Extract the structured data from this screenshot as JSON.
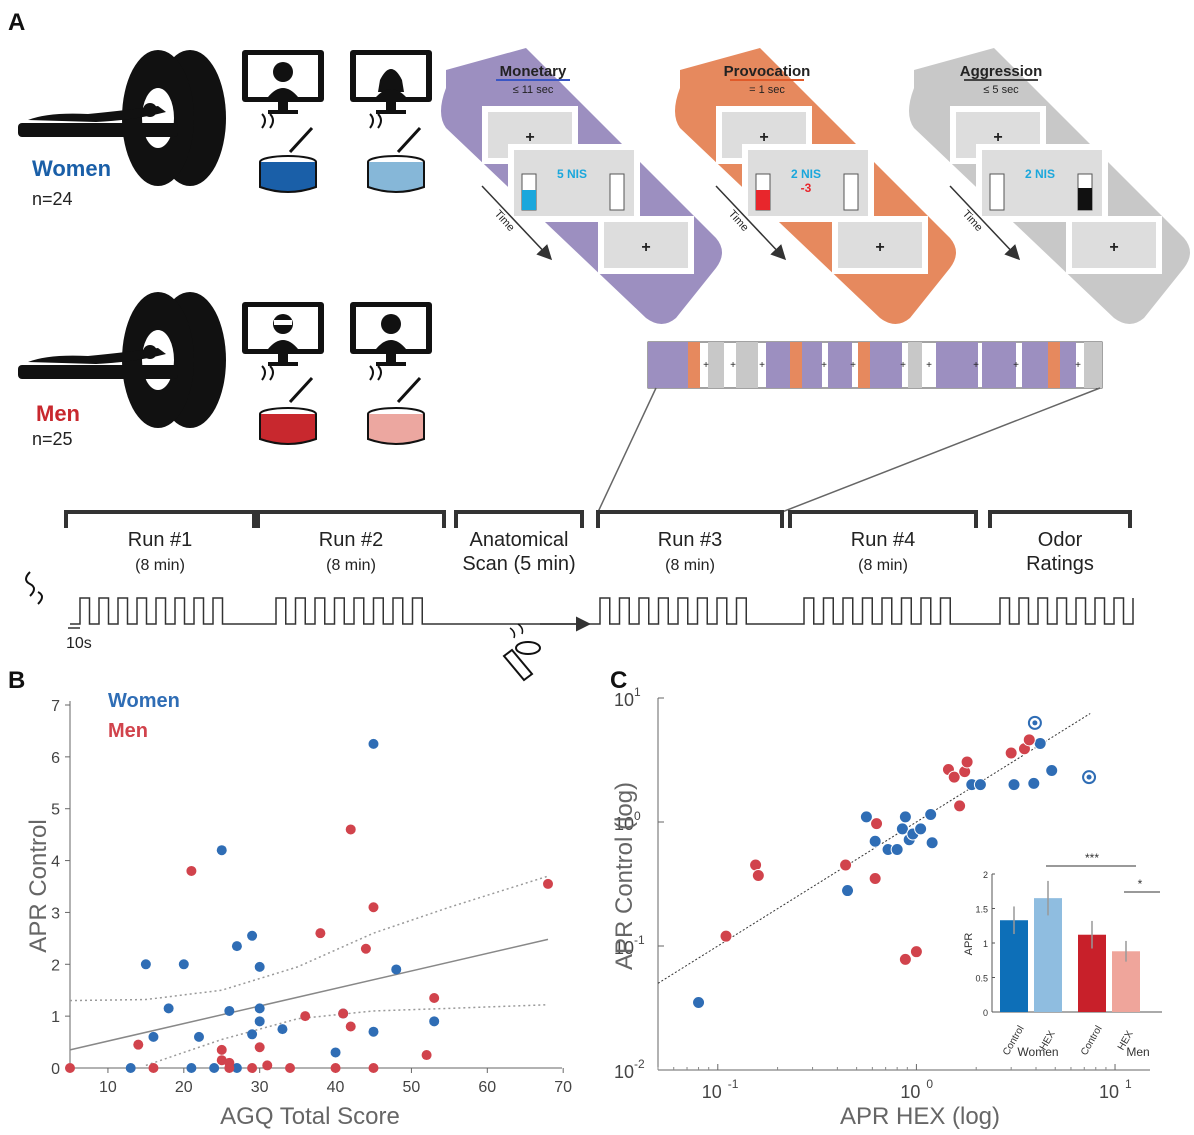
{
  "panel_a": {
    "label": "A",
    "women": {
      "label": "Women",
      "n": "n=24"
    },
    "men": {
      "label": "Men",
      "n": "n=25"
    },
    "tasks": [
      {
        "title": "Monetary",
        "duration": "≤ 11 sec",
        "amount": "5 NIS",
        "penalty": "",
        "time_label": "Time"
      },
      {
        "title": "Provocation",
        "duration": "= 1 sec",
        "amount": "2 NIS",
        "penalty": "-3",
        "time_label": "Time"
      },
      {
        "title": "Aggression",
        "duration": "≤ 5 sec",
        "amount": "2 NIS",
        "penalty": "",
        "time_label": "Time"
      }
    ],
    "fixation": "+",
    "scans": [
      {
        "title": "Run #1",
        "duration": "(8 min)"
      },
      {
        "title": "Run #2",
        "duration": "(8 min)"
      },
      {
        "title": "Anatomical",
        "duration": "Scan (5 min)"
      },
      {
        "title": "Run #3",
        "duration": "(8 min)"
      },
      {
        "title": "Run #4",
        "duration": "(8 min)"
      },
      {
        "title": "Odor",
        "duration": "Ratings"
      }
    ],
    "block_label": "10s",
    "colors": {
      "monetary": "#9c8fc0",
      "provocation": "#e6895e",
      "aggression": "#c8c8c8",
      "women_strong": "#1a5fa8",
      "women_light": "#86b7d8",
      "men_strong": "#c8282e",
      "men_light": "#eca7a0",
      "cyan": "#1aa7dc",
      "red": "#e8262c"
    }
  },
  "panel_b": {
    "label": "B",
    "chart_data": {
      "type": "scatter",
      "xlabel": "AGQ Total Score",
      "ylabel": "APR Control",
      "xlim": [
        5,
        72
      ],
      "ylim": [
        0,
        7.2
      ],
      "xticks": [
        10,
        20,
        30,
        40,
        50,
        60,
        70
      ],
      "yticks": [
        0,
        1,
        2,
        3,
        4,
        5,
        6,
        7
      ],
      "legend": [
        "Women",
        "Men"
      ],
      "series": [
        {
          "name": "Women",
          "color": "#2f6db5",
          "points": [
            [
              13,
              0
            ],
            [
              15,
              2.0
            ],
            [
              16,
              0.6
            ],
            [
              18,
              1.15
            ],
            [
              20,
              2.0
            ],
            [
              21,
              0
            ],
            [
              22,
              0.6
            ],
            [
              24,
              0
            ],
            [
              25,
              4.2
            ],
            [
              26,
              1.1
            ],
            [
              27,
              0
            ],
            [
              27,
              2.35
            ],
            [
              29,
              2.55
            ],
            [
              29,
              0.65
            ],
            [
              30,
              1.95
            ],
            [
              30,
              1.15
            ],
            [
              30,
              0.9
            ],
            [
              33,
              0.75
            ],
            [
              40,
              0.3
            ],
            [
              41,
              1.05
            ],
            [
              45,
              6.25
            ],
            [
              45,
              0.7
            ],
            [
              48,
              1.9
            ],
            [
              53,
              0.9
            ]
          ]
        },
        {
          "name": "Men",
          "color": "#d1434c",
          "points": [
            [
              5,
              0
            ],
            [
              14,
              0.45
            ],
            [
              16,
              0
            ],
            [
              21,
              3.8
            ],
            [
              25,
              0.35
            ],
            [
              25,
              0.15
            ],
            [
              26,
              0.1
            ],
            [
              26,
              0
            ],
            [
              29,
              0
            ],
            [
              30,
              0.4
            ],
            [
              31,
              0.05
            ],
            [
              34,
              0
            ],
            [
              36,
              1.0
            ],
            [
              38,
              2.6
            ],
            [
              40,
              0
            ],
            [
              41,
              1.05
            ],
            [
              42,
              4.6
            ],
            [
              42,
              0.8
            ],
            [
              44,
              2.3
            ],
            [
              45,
              3.1
            ],
            [
              45,
              0
            ],
            [
              52,
              0.25
            ],
            [
              53,
              1.35
            ],
            [
              68,
              3.55
            ]
          ]
        }
      ],
      "fit_line": [
        [
          5,
          0.35
        ],
        [
          68,
          2.48
        ]
      ],
      "ci_upper": [
        [
          5,
          1.3
        ],
        [
          15,
          1.32
        ],
        [
          25,
          1.5
        ],
        [
          35,
          1.95
        ],
        [
          45,
          2.6
        ],
        [
          55,
          3.1
        ],
        [
          68,
          3.7
        ]
      ],
      "ci_lower": [
        [
          15,
          0.05
        ],
        [
          25,
          0.55
        ],
        [
          35,
          0.95
        ],
        [
          45,
          1.1
        ],
        [
          55,
          1.15
        ],
        [
          68,
          1.22
        ]
      ]
    }
  },
  "panel_c": {
    "label": "C",
    "chart_data": {
      "type": "scatter",
      "xlabel": "APR HEX (log)",
      "ylabel": "APR Control (log)",
      "x_scale": "log",
      "y_scale": "log",
      "xlim": [
        0.05,
        15
      ],
      "ylim": [
        0.01,
        10
      ],
      "xticks": [
        "10",
        "10",
        "10"
      ],
      "xtick_exp": [
        "-1",
        "0",
        "1"
      ],
      "yticks": [
        "10",
        "10",
        "10",
        "10"
      ],
      "ytick_exp": [
        "-2",
        "-1",
        "0",
        "1"
      ],
      "series": [
        {
          "name": "Women",
          "color": "#2f6db5",
          "points": [
            [
              0.08,
              0.035
            ],
            [
              0.45,
              0.28
            ],
            [
              0.56,
              1.1
            ],
            [
              0.62,
              0.7
            ],
            [
              0.72,
              0.6
            ],
            [
              0.8,
              0.6
            ],
            [
              0.85,
              0.88
            ],
            [
              0.88,
              1.1
            ],
            [
              0.92,
              0.72
            ],
            [
              0.96,
              0.8
            ],
            [
              1.05,
              0.88
            ],
            [
              1.18,
              1.15
            ],
            [
              1.2,
              0.68
            ],
            [
              1.9,
              2.0
            ],
            [
              2.1,
              2.0
            ],
            [
              3.1,
              2.0
            ],
            [
              3.9,
              2.05
            ],
            [
              4.2,
              4.3
            ],
            [
              4.8,
              2.6
            ]
          ]
        },
        {
          "name": "Men",
          "color": "#d1434c",
          "points": [
            [
              0.11,
              0.12
            ],
            [
              0.155,
              0.45
            ],
            [
              0.16,
              0.37
            ],
            [
              0.44,
              0.45
            ],
            [
              0.62,
              0.35
            ],
            [
              0.63,
              0.97
            ],
            [
              0.88,
              0.078
            ],
            [
              1.0,
              0.09
            ],
            [
              1.45,
              2.65
            ],
            [
              1.55,
              2.3
            ],
            [
              1.65,
              1.35
            ],
            [
              1.75,
              2.55
            ],
            [
              1.8,
              3.05
            ],
            [
              3.0,
              3.6
            ],
            [
              3.5,
              3.9
            ],
            [
              3.7,
              4.6
            ]
          ]
        }
      ],
      "outliers": [
        [
          3.95,
          6.3
        ],
        [
          7.4,
          2.3
        ]
      ],
      "fit_line": [
        [
          0.05,
          0.05
        ],
        [
          7.5,
          7.5
        ]
      ]
    },
    "inset": {
      "chart_data": {
        "type": "bar",
        "ylabel": "APR",
        "ylim": [
          0,
          2
        ],
        "yticks": [
          "0",
          "0.5",
          "1",
          "1.5",
          "2"
        ],
        "categories": [
          "Control",
          "HEX",
          "Control",
          "HEX"
        ],
        "groups": [
          "Women",
          "Men"
        ],
        "values": [
          1.33,
          1.65,
          1.12,
          0.88
        ],
        "errors": [
          0.2,
          0.25,
          0.2,
          0.15
        ],
        "colors": [
          "#0d6fb8",
          "#8fbde0",
          "#c8202a",
          "#efa59b"
        ],
        "significance": [
          "***",
          "*"
        ]
      }
    }
  }
}
